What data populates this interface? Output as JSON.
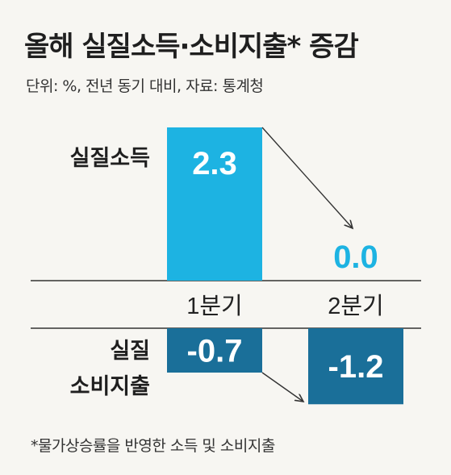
{
  "title": "올해 실질소득·소비지출* 증감",
  "subtitle": "단위: %, 전년 동기 대비, 자료: 통계청",
  "footnote": "*물가상승률을 반영한 소득 및 소비지출",
  "colors": {
    "income": "#1db3e2",
    "spending": "#1a6f99",
    "value_on_bar": "#ffffff",
    "value_off_bar": "#1db3e2",
    "arrow": "#333333",
    "axis": "#333333"
  },
  "chart_data": [
    {
      "type": "bar",
      "title": "",
      "row_label": [
        "실질소득"
      ],
      "categories": [
        "1분기",
        "2분기"
      ],
      "values": [
        2.3,
        0.0
      ],
      "value_labels": [
        "2.3",
        "0.0"
      ]
    },
    {
      "type": "bar",
      "title": "",
      "row_label": [
        "실질",
        "소비지출"
      ],
      "categories": [
        "1분기",
        "2분기"
      ],
      "values": [
        -0.7,
        -1.2
      ],
      "value_labels": [
        "-0.7",
        "-1.2"
      ]
    }
  ]
}
